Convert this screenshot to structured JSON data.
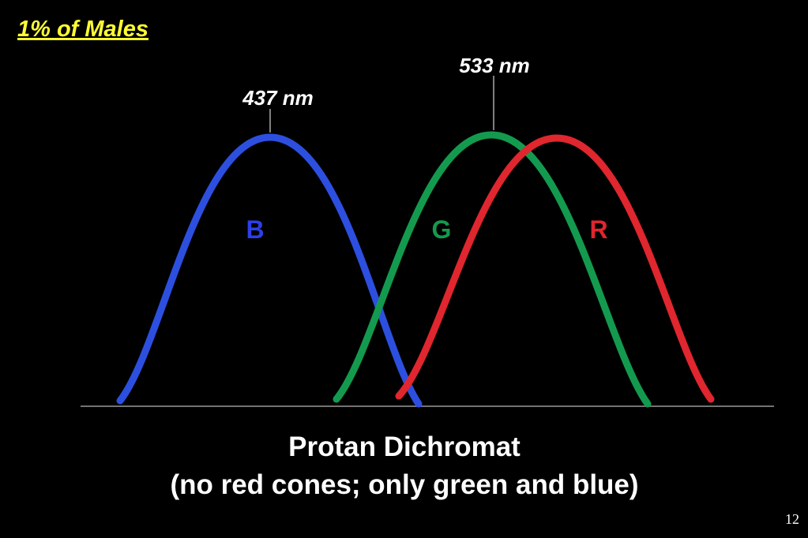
{
  "header": {
    "title": "1% of Males"
  },
  "peak_labels": [
    "437 nm",
    "533 nm"
  ],
  "curve_labels": [
    "B",
    "G",
    "R"
  ],
  "caption": {
    "line1": "Protan Dichromat",
    "line2": "(no red cones; only green and blue)"
  },
  "page_number": "12"
}
